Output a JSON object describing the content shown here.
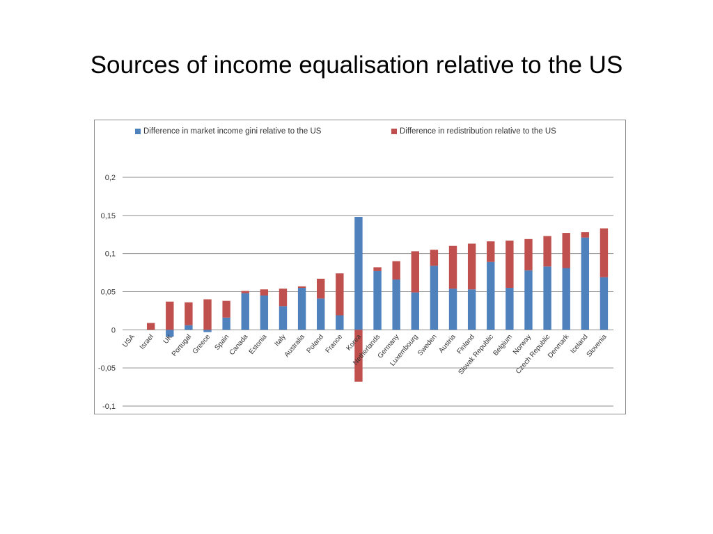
{
  "slide": {
    "title": "Sources of income equalisation relative to the US"
  },
  "colors": {
    "market": "#4f81bd",
    "redistribution": "#c0504d"
  },
  "chart_data": {
    "type": "bar",
    "stacked": true,
    "title": "",
    "xlabel": "",
    "ylabel": "",
    "ylim": [
      -0.1,
      0.2
    ],
    "yticks": [
      "-0,1",
      "-0,05",
      "0",
      "0,05",
      "0,1",
      "0,15",
      "0,2"
    ],
    "ytick_values": [
      -0.1,
      -0.05,
      0,
      0.05,
      0.1,
      0.15,
      0.2
    ],
    "grid": true,
    "legend_position": "top",
    "categories": [
      "USA",
      "Israel",
      "UK",
      "Portugal",
      "Greece",
      "Spain",
      "Canada",
      "Estonia",
      "Italy",
      "Australia",
      "Poland",
      "France",
      "Korea",
      "Netherlands",
      "Germany",
      "Luxembourg",
      "Sweden",
      "Austria",
      "Finland",
      "Slovak Republic",
      "Belgium",
      "Norway",
      "Czech Republic",
      "Denmark",
      "Iceland",
      "Slovenia"
    ],
    "series": [
      {
        "name": "Difference in market income gini relative to the US",
        "values": [
          0,
          0,
          -0.009,
          0.006,
          -0.003,
          0.016,
          0.048,
          0.045,
          0.031,
          0.055,
          0.041,
          0.019,
          0.148,
          0.077,
          0.066,
          0.049,
          0.084,
          0.054,
          0.053,
          0.089,
          0.055,
          0.078,
          0.083,
          0.081,
          0.121,
          0.069
        ]
      },
      {
        "name": "Difference in redistribution relative to the US",
        "values": [
          0,
          0.009,
          0.037,
          0.03,
          0.04,
          0.022,
          0.003,
          0.008,
          0.023,
          0.002,
          0.026,
          0.055,
          -0.068,
          0.005,
          0.024,
          0.054,
          0.021,
          0.056,
          0.06,
          0.027,
          0.062,
          0.041,
          0.04,
          0.046,
          0.007,
          0.064
        ]
      }
    ]
  }
}
